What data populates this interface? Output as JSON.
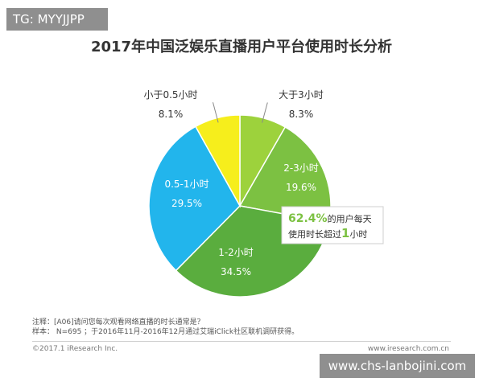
{
  "tag_label": "TG: MYYJJPP",
  "title": "2017年中国泛娱乐直播用户平台使用时长分析",
  "chart_data": {
    "type": "pie",
    "slices": [
      {
        "label": "大于3小时",
        "value": "8.3%",
        "pct": 8.3,
        "color": "#9dd23c"
      },
      {
        "label": "2-3小时",
        "value": "19.6%",
        "pct": 19.6,
        "color": "#7cc142"
      },
      {
        "label": "1-2小时",
        "value": "34.5%",
        "pct": 34.5,
        "color": "#5aad3e"
      },
      {
        "label": "0.5-1小时",
        "value": "29.5%",
        "pct": 29.5,
        "color": "#22b5ec"
      },
      {
        "label": "小于0.5小时",
        "value": "8.1%",
        "pct": 8.1,
        "color": "#f6ee1c"
      }
    ],
    "callout": {
      "pct": "62.4%",
      "text1": "的用户每天",
      "text2a": "使用时长超过",
      "num": "1",
      "text2b": "小时"
    }
  },
  "note_line1": "注释：[A06]请问您每次观看网络直播的时长通常是？",
  "note_line2": "样本： N=695 ；于2016年11月-2016年12月通过艾瑞iClick社区联机调研获得。",
  "footer_left": "©2017.1 iResearch Inc.",
  "footer_right": "www.iresearch.com.cn",
  "watermark": "www.chs-lanbojini.com"
}
